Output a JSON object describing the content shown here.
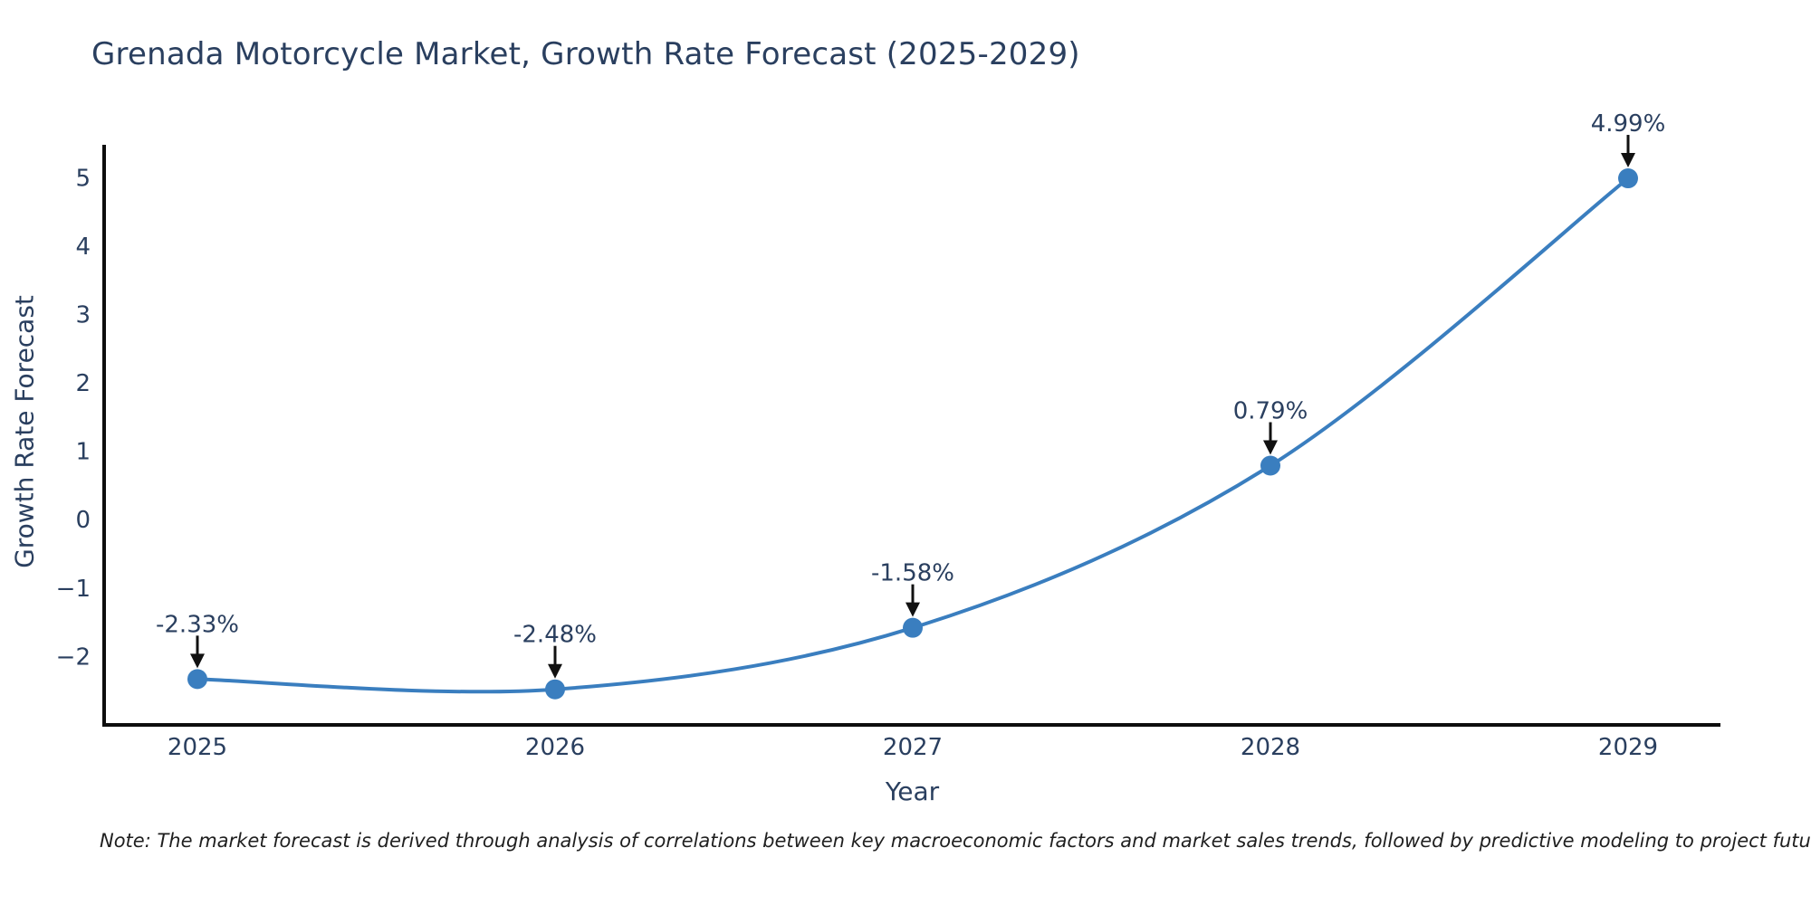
{
  "figure": {
    "note": "Note: The market forecast is derived through analysis of correlations between key macroeconomic factors and market sales trends, followed by predictive modeling to project future sales"
  },
  "chart_data": {
    "type": "line",
    "line_shape": "spline",
    "title": "Grenada Motorcycle Market, Growth Rate Forecast (2025-2029)",
    "xlabel": "Year",
    "ylabel": "Growth Rate Forecast",
    "x": [
      2025,
      2026,
      2027,
      2028,
      2029
    ],
    "x_tick_labels": [
      "2025",
      "2026",
      "2027",
      "2028",
      "2029"
    ],
    "series": [
      {
        "name": "Growth Rate Forecast",
        "values": [
          -2.33,
          -2.48,
          -1.58,
          0.79,
          4.99
        ]
      }
    ],
    "point_labels": [
      "-2.33%",
      "-2.48%",
      "-1.58%",
      "0.79%",
      "4.99%"
    ],
    "yticks": [
      5,
      4,
      3,
      2,
      1,
      0,
      -1,
      -2
    ],
    "y_tick_labels": [
      "5",
      "4",
      "3",
      "2",
      "1",
      "0",
      "−1",
      "−2"
    ],
    "ylim": [
      -3.0,
      5.48
    ],
    "grid": false,
    "legend": "none",
    "colors": {
      "line": "#3a7ebf",
      "marker": "#3a7ebf",
      "text": "#2a3f5f",
      "axis": "#0d0d0d",
      "arrow": "#111111",
      "background": "#ffffff"
    }
  }
}
